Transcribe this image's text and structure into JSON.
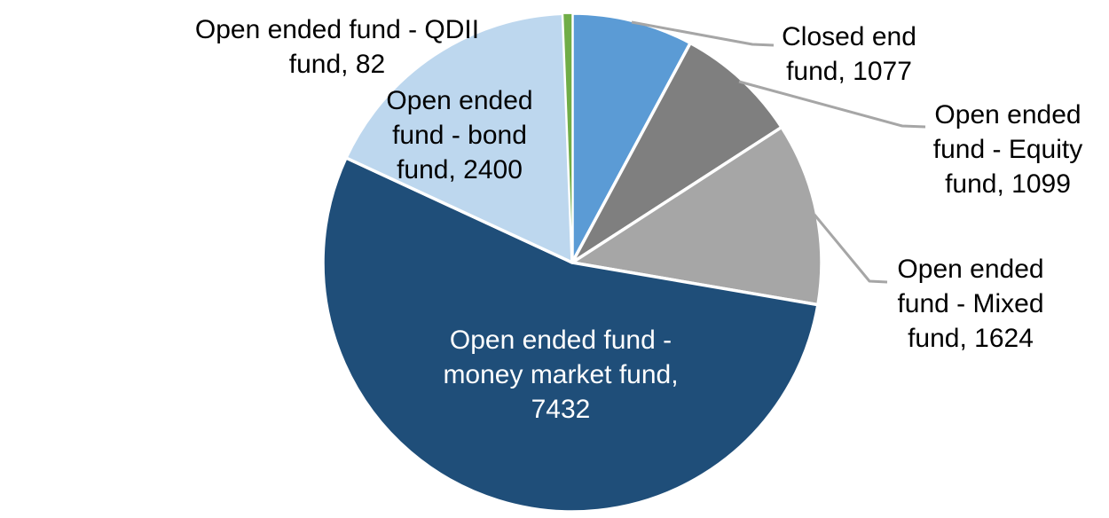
{
  "chart_data": {
    "type": "pie",
    "title": "",
    "legend": "none",
    "background": "#FFFFFF",
    "total": 13714,
    "start_angle_deg": 0,
    "direction": "clockwise",
    "leader_line_color": "#A6A6A6",
    "slice_border_color": "#FFFFFF",
    "slices": [
      {
        "name": "Closed end fund",
        "value": 1077,
        "color": "#5B9BD5",
        "label_color": "#000000",
        "label_lines": [
          "Closed end",
          "fund, 1077"
        ]
      },
      {
        "name": "Open ended fund - Equity fund",
        "value": 1099,
        "color": "#7F7F7F",
        "label_color": "#000000",
        "label_lines": [
          "Open ended",
          "fund - Equity",
          "fund, 1099"
        ]
      },
      {
        "name": "Open ended fund - Mixed fund",
        "value": 1624,
        "color": "#A6A6A6",
        "label_color": "#000000",
        "label_lines": [
          "Open ended",
          "fund - Mixed",
          "fund, 1624"
        ]
      },
      {
        "name": "Open ended fund - money market fund",
        "value": 7432,
        "color": "#1F4E79",
        "label_color": "#FFFFFF",
        "label_lines": [
          "Open ended fund -",
          "money market fund,",
          "7432"
        ]
      },
      {
        "name": "Open ended fund - bond fund",
        "value": 2400,
        "color": "#BDD7EE",
        "label_color": "#000000",
        "label_lines": [
          "Open ended",
          "fund - bond",
          "fund, 2400"
        ]
      },
      {
        "name": "Open ended fund - QDII fund",
        "value": 82,
        "color": "#70AD47",
        "label_color": "#000000",
        "label_lines": [
          "Open ended fund - QDII",
          "fund, 82"
        ]
      }
    ]
  }
}
